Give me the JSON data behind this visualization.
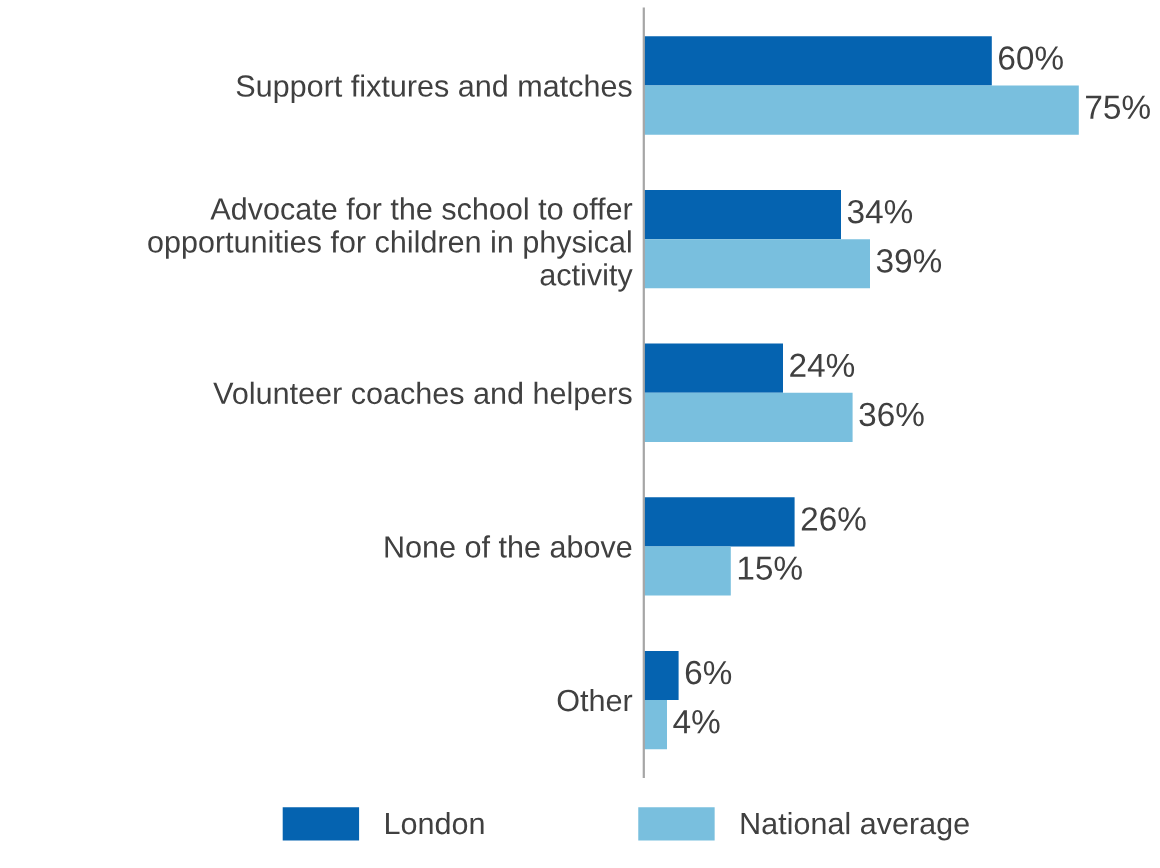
{
  "chart_data": {
    "type": "bar",
    "orientation": "horizontal",
    "categories": [
      "Support fixtures and matches",
      "Advocate for the school to offer\nopportunities for children in physical\nactivity",
      "Volunteer coaches and helpers",
      "None of the above",
      "Other"
    ],
    "series": [
      {
        "name": "London",
        "color": "#0563b0",
        "values": [
          60,
          34,
          24,
          26,
          6
        ],
        "value_labels": [
          "60%",
          "34%",
          "24%",
          "26%",
          "6%"
        ]
      },
      {
        "name": "National average",
        "color": "#79bfde",
        "values": [
          75,
          39,
          36,
          15,
          4
        ],
        "value_labels": [
          "75%",
          "39%",
          "36%",
          "15%",
          "4%"
        ]
      }
    ],
    "legend": "bottom",
    "grid": false
  }
}
